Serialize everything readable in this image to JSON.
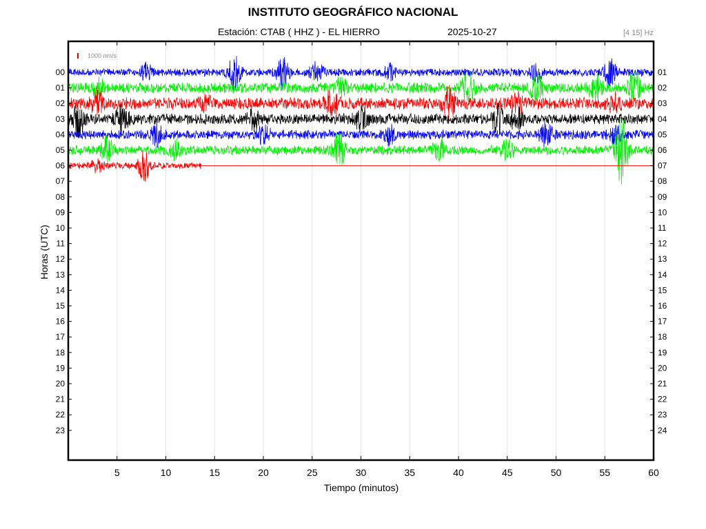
{
  "header": {
    "title": "INSTITUTO GEOGRÁFICO NACIONAL",
    "station": "Estación:  CTAB ( HHZ ) - EL HIERRO",
    "date": "2025-10-27",
    "filter": "[4 15] Hz",
    "scale": "1000 nm/s"
  },
  "colors": {
    "cycle": [
      "#0000ff",
      "#00ee00",
      "#ff0000",
      "#000000"
    ],
    "scale_bar": "#e00000",
    "grid": "#e3e3e3",
    "frame": "#000000",
    "label_gray": "#8a8a8a"
  },
  "chart_data": {
    "type": "line",
    "title": "INSTITUTO GEOGRÁFICO NACIONAL",
    "xlabel": "Tiempo (minutos)",
    "ylabel": "Horas (UTC)",
    "xlim": [
      0,
      60
    ],
    "xticks": [
      5,
      10,
      15,
      20,
      25,
      30,
      35,
      40,
      45,
      50,
      55,
      60
    ],
    "ytick_labels_left": [
      "00",
      "01",
      "02",
      "03",
      "04",
      "05",
      "06",
      "07",
      "08",
      "09",
      "10",
      "11",
      "12",
      "13",
      "14",
      "15",
      "16",
      "17",
      "18",
      "19",
      "20",
      "21",
      "22",
      "23"
    ],
    "ytick_labels_right": [
      "01",
      "02",
      "03",
      "04",
      "05",
      "06",
      "07",
      "08",
      "09",
      "10",
      "11",
      "12",
      "13",
      "14",
      "15",
      "16",
      "17",
      "18",
      "19",
      "20",
      "21",
      "22",
      "23",
      "24"
    ],
    "grid": "vertical",
    "legend": "none",
    "series": [
      {
        "hour": 0,
        "color": "#0000ff",
        "x_start": 0,
        "x_end": 60,
        "base_amp": 6,
        "events": [
          {
            "t": 17,
            "amp": 24
          },
          {
            "t": 22,
            "amp": 22
          },
          {
            "t": 25.5,
            "amp": 14
          },
          {
            "t": 33,
            "amp": 10
          },
          {
            "t": 48,
            "amp": 12
          },
          {
            "t": 55.5,
            "amp": 18
          },
          {
            "t": 8,
            "amp": 10
          }
        ]
      },
      {
        "hour": 1,
        "color": "#00ee00",
        "x_start": 0,
        "x_end": 60,
        "base_amp": 8,
        "events": [
          {
            "t": 41,
            "amp": 22
          },
          {
            "t": 48,
            "amp": 16
          },
          {
            "t": 54,
            "amp": 18
          },
          {
            "t": 58,
            "amp": 22
          },
          {
            "t": 3,
            "amp": 12
          },
          {
            "t": 28,
            "amp": 12
          }
        ]
      },
      {
        "hour": 2,
        "color": "#ff0000",
        "x_start": 0,
        "x_end": 60,
        "base_amp": 9,
        "events": [
          {
            "t": 39,
            "amp": 22
          },
          {
            "t": 27,
            "amp": 16
          },
          {
            "t": 3,
            "amp": 14
          },
          {
            "t": 14,
            "amp": 12
          },
          {
            "t": 46,
            "amp": 14
          },
          {
            "t": 56,
            "amp": 12
          }
        ]
      },
      {
        "hour": 3,
        "color": "#000000",
        "x_start": 0,
        "x_end": 60,
        "base_amp": 8,
        "events": [
          {
            "t": 1,
            "amp": 22
          },
          {
            "t": 5.5,
            "amp": 20
          },
          {
            "t": 44,
            "amp": 18
          },
          {
            "t": 46,
            "amp": 18
          },
          {
            "t": 30,
            "amp": 14
          },
          {
            "t": 19,
            "amp": 12
          }
        ]
      },
      {
        "hour": 4,
        "color": "#0000ff",
        "x_start": 0,
        "x_end": 60,
        "base_amp": 7,
        "events": [
          {
            "t": 9,
            "amp": 14
          },
          {
            "t": 20,
            "amp": 14
          },
          {
            "t": 33,
            "amp": 12
          },
          {
            "t": 49,
            "amp": 16
          },
          {
            "t": 56,
            "amp": 12
          }
        ]
      },
      {
        "hour": 5,
        "color": "#00ee00",
        "x_start": 0,
        "x_end": 60,
        "base_amp": 7,
        "events": [
          {
            "t": 27.7,
            "amp": 30
          },
          {
            "t": 56.7,
            "amp": 50
          },
          {
            "t": 4,
            "amp": 16
          },
          {
            "t": 11,
            "amp": 12
          },
          {
            "t": 38,
            "amp": 14
          },
          {
            "t": 45,
            "amp": 12
          }
        ]
      },
      {
        "hour": 6,
        "color": "#ff0000",
        "x_start": 0,
        "x_end": 13.7,
        "base_amp": 5,
        "events": [
          {
            "t": 7.8,
            "amp": 20
          },
          {
            "t": 3,
            "amp": 8
          }
        ]
      }
    ]
  }
}
